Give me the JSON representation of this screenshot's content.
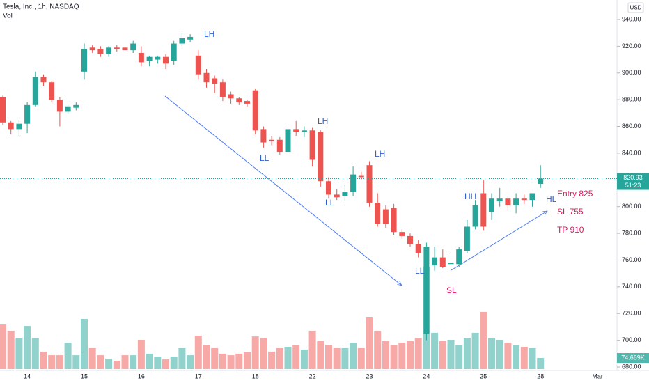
{
  "chart_data": {
    "type": "candlestick",
    "title": "Tesla, Inc., 1h, NASDAQ",
    "volume_label": "Vol",
    "currency": "USD",
    "countdown": "51:23",
    "up_color": "#26a69a",
    "down_color": "#ef5350",
    "grid": false,
    "categories": [
      null,
      null,
      null,
      "14",
      null,
      null,
      null,
      null,
      null,
      null,
      "15",
      null,
      null,
      null,
      null,
      null,
      null,
      "16",
      null,
      null,
      null,
      null,
      null,
      null,
      "17",
      null,
      null,
      null,
      null,
      null,
      null,
      "18",
      null,
      null,
      null,
      null,
      null,
      null,
      "22",
      null,
      null,
      null,
      null,
      null,
      null,
      "23",
      null,
      null,
      null,
      null,
      null,
      null,
      "24",
      null,
      null,
      null,
      null,
      null,
      null,
      "25",
      null,
      null,
      null,
      null,
      null,
      null,
      "28",
      null,
      null,
      null,
      null,
      null,
      null,
      "Mar"
    ],
    "open": [
      882,
      863,
      858,
      862,
      876,
      897,
      893,
      880,
      871,
      874,
      901,
      919,
      918,
      914,
      919,
      919,
      917,
      915,
      909,
      910,
      912,
      909,
      922,
      925,
      913,
      900,
      896,
      893,
      884,
      881,
      879,
      887,
      858,
      850,
      850,
      841,
      858,
      856,
      857,
      856,
      819,
      809,
      808,
      811,
      823,
      831,
      803,
      798,
      799,
      781,
      778,
      772,
      705,
      756,
      762,
      757,
      757,
      767,
      785,
      810,
      796,
      804,
      806,
      801,
      806,
      805,
      817,
      null,
      null,
      null,
      null,
      null,
      null,
      null
    ],
    "high": [
      883,
      864,
      865,
      878,
      901,
      899,
      894,
      882,
      876,
      878,
      922,
      921,
      920,
      920,
      921,
      920,
      924,
      920,
      913,
      913,
      914,
      924,
      930,
      929,
      917,
      903,
      898,
      895,
      886,
      882,
      880,
      888,
      860,
      853,
      852,
      860,
      864,
      860,
      859,
      857,
      822,
      813,
      816,
      830,
      826,
      834,
      810,
      801,
      802,
      783,
      780,
      775,
      773,
      770,
      768,
      766,
      770,
      790,
      805,
      820,
      810,
      814,
      808,
      810,
      809,
      810,
      831,
      null,
      null,
      null,
      null,
      null,
      null,
      null
    ],
    "low": [
      861,
      854,
      853,
      855,
      875,
      890,
      878,
      860,
      869,
      872,
      895,
      915,
      912,
      912,
      916,
      914,
      915,
      905,
      905,
      907,
      903,
      906,
      920,
      923,
      895,
      889,
      885,
      879,
      877,
      876,
      875,
      854,
      844,
      846,
      839,
      839,
      853,
      852,
      830,
      815,
      806,
      805,
      804,
      808,
      820,
      800,
      785,
      784,
      779,
      776,
      770,
      762,
      700,
      752,
      754,
      752,
      755,
      765,
      783,
      782,
      790,
      800,
      797,
      795,
      802,
      800,
      814,
      null,
      null,
      null,
      null,
      null,
      null,
      null
    ],
    "close": [
      863,
      858,
      862,
      876,
      897,
      893,
      880,
      871,
      875,
      876,
      918,
      917,
      914,
      919,
      918,
      917,
      922,
      908,
      912,
      912,
      907,
      922,
      926,
      927,
      899,
      893,
      892,
      882,
      881,
      878,
      877,
      857,
      848,
      849,
      841,
      858,
      856,
      857,
      835,
      819,
      809,
      807,
      811,
      824,
      822,
      803,
      787,
      787,
      781,
      778,
      772,
      765,
      770,
      762,
      755,
      758,
      768,
      785,
      801,
      785,
      806,
      806,
      801,
      806,
      805,
      810,
      820.93,
      null,
      null,
      null,
      null,
      null,
      null,
      null
    ],
    "volume": [
      303000,
      257000,
      210000,
      289000,
      210000,
      117000,
      93000,
      93000,
      177000,
      93000,
      336000,
      140000,
      93000,
      70000,
      56000,
      93000,
      93000,
      196000,
      103000,
      84000,
      65000,
      84000,
      140000,
      93000,
      224000,
      163000,
      140000,
      103000,
      93000,
      103000,
      112000,
      219000,
      210000,
      117000,
      140000,
      149000,
      163000,
      131000,
      257000,
      187000,
      163000,
      140000,
      140000,
      177000,
      140000,
      350000,
      257000,
      187000,
      163000,
      177000,
      187000,
      210000,
      686000,
      243000,
      187000,
      196000,
      163000,
      210000,
      243000,
      383000,
      210000,
      196000,
      177000,
      163000,
      149000,
      140000,
      74669,
      null,
      null,
      null,
      null,
      null,
      null,
      null
    ],
    "volume_value_labels": [
      null,
      null,
      null,
      null,
      null,
      null,
      null,
      null,
      null,
      null,
      null,
      null,
      null,
      null,
      null,
      null,
      null,
      null,
      null,
      null,
      null,
      null,
      null,
      null,
      null,
      null,
      null,
      null,
      null,
      null,
      null,
      null,
      null,
      null,
      null,
      null,
      null,
      null,
      null,
      null,
      null,
      null,
      null,
      null,
      null,
      null,
      null,
      null,
      null,
      null,
      null,
      null,
      null,
      null,
      null,
      null,
      null,
      null,
      null,
      null,
      null,
      null,
      null,
      null,
      null,
      null,
      "74.669K",
      null,
      null,
      null,
      null,
      null,
      null,
      null
    ],
    "ylim": [
      680,
      940
    ],
    "yticks": [
      {
        "value": 680,
        "label": "680.00"
      },
      {
        "value": 700,
        "label": "700.00"
      },
      {
        "value": 720,
        "label": "720.00"
      },
      {
        "value": 740,
        "label": "740.00"
      },
      {
        "value": 760,
        "label": "760.00"
      },
      {
        "value": 780,
        "label": "780.00"
      },
      {
        "value": 800,
        "label": "800.00"
      },
      {
        "value": 820,
        "label": "820.00"
      },
      {
        "value": 840,
        "label": "840.00"
      },
      {
        "value": 860,
        "label": "860.00"
      },
      {
        "value": 880,
        "label": "880.00"
      },
      {
        "value": 900,
        "label": "900.00"
      },
      {
        "value": 920,
        "label": "920.00"
      },
      {
        "value": 940,
        "label": "940.00"
      }
    ],
    "annotations": [
      {
        "text": "LH",
        "color": "#2f5fd0"
      },
      {
        "text": "LL",
        "color": "#2f5fd0"
      },
      {
        "text": "LH",
        "color": "#2f5fd0"
      },
      {
        "text": "LL",
        "color": "#2f5fd0"
      },
      {
        "text": "LH",
        "color": "#2f5fd0"
      },
      {
        "text": "LL",
        "color": "#2f5fd0"
      },
      {
        "text": "SL",
        "color": "#d81b60"
      },
      {
        "text": "HH",
        "color": "#2f5fd0"
      },
      {
        "text": "HL",
        "color": "#2f5fd0"
      },
      {
        "text": "Entry 825",
        "color": "#d81b60"
      },
      {
        "text": "SL 755",
        "color": "#d81b60"
      },
      {
        "text": "TP 910",
        "color": "#d81b60"
      }
    ]
  }
}
